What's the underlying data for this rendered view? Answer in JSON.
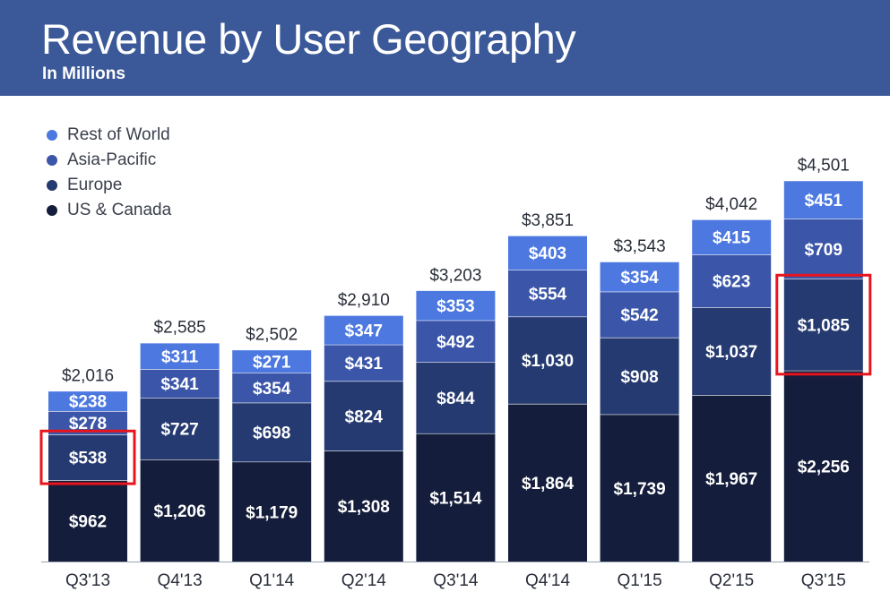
{
  "header": {
    "title": "Revenue by User Geography",
    "subtitle": "In Millions"
  },
  "colors": {
    "header_bg": "#3b5998",
    "rest_of_world": "#4c78e0",
    "asia_pacific": "#3b56a8",
    "europe": "#253a70",
    "us_canada": "#141d3b",
    "highlight": "#e8141c"
  },
  "legend": [
    {
      "label": "Rest of World",
      "color": "#4c78e0"
    },
    {
      "label": "Asia-Pacific",
      "color": "#3b56a8"
    },
    {
      "label": "Europe",
      "color": "#253a70"
    },
    {
      "label": "US & Canada",
      "color": "#141d3b"
    }
  ],
  "chart_data": {
    "type": "bar",
    "stacked": true,
    "title": "Revenue by User Geography",
    "subtitle": "In Millions",
    "categories": [
      "Q3'13",
      "Q4'13",
      "Q1'14",
      "Q2'14",
      "Q3'14",
      "Q4'14",
      "Q1'15",
      "Q2'15",
      "Q3'15"
    ],
    "series": [
      {
        "name": "US & Canada",
        "color": "#141d3b",
        "values": [
          962,
          1206,
          1179,
          1308,
          1514,
          1864,
          1739,
          1967,
          2256
        ]
      },
      {
        "name": "Europe",
        "color": "#253a70",
        "values": [
          538,
          727,
          698,
          824,
          844,
          1030,
          908,
          1037,
          1085
        ]
      },
      {
        "name": "Asia-Pacific",
        "color": "#3b56a8",
        "values": [
          278,
          341,
          354,
          431,
          492,
          554,
          542,
          623,
          709
        ]
      },
      {
        "name": "Rest of World",
        "color": "#4c78e0",
        "values": [
          238,
          311,
          271,
          347,
          353,
          403,
          354,
          415,
          451
        ]
      }
    ],
    "value_labels": [
      [
        "$962",
        "$1,206",
        "$1,179",
        "$1,308",
        "$1,514",
        "$1,864",
        "$1,739",
        "$1,967",
        "$2,256"
      ],
      [
        "$538",
        "$727",
        "$698",
        "$824",
        "$844",
        "$1,030",
        "$908",
        "$1,037",
        "$1,085"
      ],
      [
        "$278",
        "$341",
        "$354",
        "$431",
        "$492",
        "$554",
        "$542",
        "$623",
        "$709"
      ],
      [
        "$238",
        "$311",
        "$271",
        "$347",
        "$353",
        "$403",
        "$354",
        "$415",
        "$451"
      ]
    ],
    "totals": [
      2016,
      2585,
      2502,
      2910,
      3203,
      3851,
      3543,
      4042,
      4501
    ],
    "total_labels": [
      "$2,016",
      "$2,585",
      "$2,502",
      "$2,910",
      "$3,203",
      "$3,851",
      "$3,543",
      "$4,042",
      "$4,501"
    ],
    "highlights": [
      {
        "category": "Q3'13",
        "series": "Europe"
      },
      {
        "category": "Q3'15",
        "series": "Europe"
      }
    ],
    "legend_position": "top-left",
    "grid": false,
    "xlabel": "",
    "ylabel": ""
  }
}
